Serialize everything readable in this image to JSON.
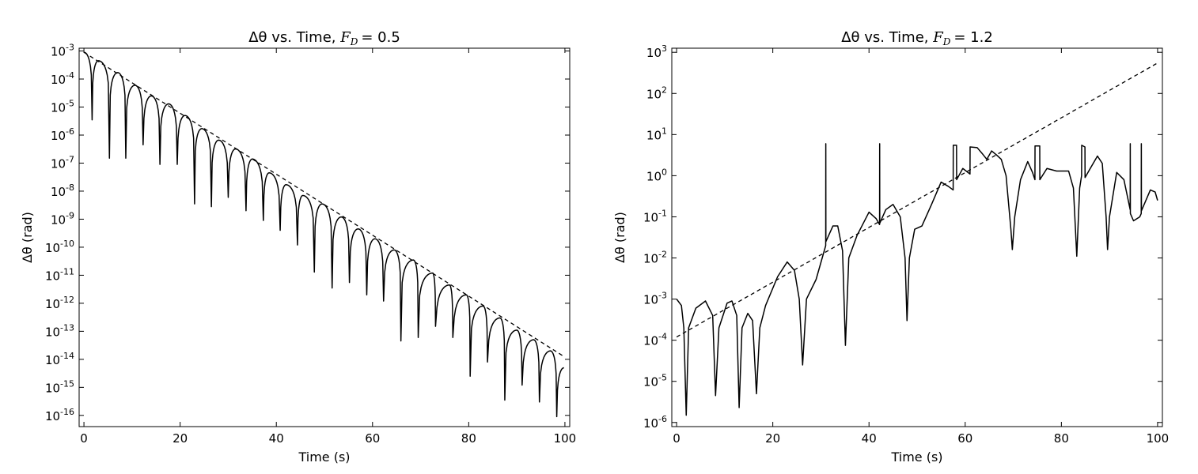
{
  "chart_data": [
    {
      "type": "line",
      "title_prefix": "Δθ vs. Time,",
      "title_math": "F",
      "title_sub": "D",
      "title_value": "= 0.5",
      "xlabel": "Time (s)",
      "ylabel": "Δθ (rad)",
      "yscale": "log",
      "xlim": [
        -1,
        101
      ],
      "ylim": [
        1e-16,
        0.001
      ],
      "ylim_log10": [
        -16.4,
        -2.9
      ],
      "x_ticks": [
        0,
        20,
        40,
        60,
        80,
        100
      ],
      "x_tick_labels": [
        "0",
        "20",
        "40",
        "60",
        "80",
        "100"
      ],
      "y_ticks_exp": [
        -3,
        -4,
        -5,
        -6,
        -7,
        -8,
        -9,
        -10,
        -11,
        -12,
        -13,
        -14,
        -15,
        -16
      ],
      "y_tick_base": "10",
      "y_tick_exp_labels": [
        "-3",
        "-4",
        "-5",
        "-6",
        "-7",
        "-8",
        "-9",
        "-10",
        "-11",
        "-12",
        "-13",
        "-14",
        "-15",
        "-16"
      ],
      "series": [
        {
          "style": "solid",
          "peaks": [
            [
              0,
              0.0009
            ],
            [
              3,
              0.00045
            ],
            [
              7,
              0.00017
            ],
            [
              10.6,
              6e-05
            ],
            [
              14,
              2.5e-05
            ],
            [
              17.6,
              1.3e-05
            ],
            [
              21,
              5e-06
            ],
            [
              24.5,
              1.7e-06
            ],
            [
              28,
              6.6e-07
            ],
            [
              31.5,
              3.2e-07
            ],
            [
              35,
              1.4e-07
            ],
            [
              38.5,
              4.5e-08
            ],
            [
              42,
              1.7e-08
            ],
            [
              45.5,
              7e-09
            ],
            [
              49.5,
              3.5e-09
            ],
            [
              53.5,
              1.2e-09
            ],
            [
              57,
              4.5e-10
            ],
            [
              60.5,
              2e-10
            ],
            [
              64.5,
              8e-11
            ],
            [
              68.5,
              3.5e-11
            ],
            [
              72.5,
              1.2e-11
            ],
            [
              76,
              4.5e-12
            ],
            [
              79.5,
              2e-12
            ],
            [
              83,
              8e-13
            ],
            [
              86.5,
              3e-13
            ],
            [
              90,
              1.1e-13
            ],
            [
              93.5,
              5e-14
            ],
            [
              97,
              2e-14
            ],
            [
              99.8,
              5e-15
            ]
          ],
          "dips": [
            [
              1.7,
              3.5e-06
            ],
            [
              5.3,
              1.5e-07
            ],
            [
              8.7,
              1.5e-07
            ],
            [
              12.3,
              4.5e-07
            ],
            [
              15.8,
              9e-08
            ],
            [
              19.4,
              9e-08
            ],
            [
              23,
              3.5e-09
            ],
            [
              26.5,
              2.8e-09
            ],
            [
              30,
              6e-09
            ],
            [
              33.7,
              2e-09
            ],
            [
              37.3,
              9e-10
            ],
            [
              40.8,
              4e-10
            ],
            [
              44.4,
              1.2e-10
            ],
            [
              47.9,
              1.3e-11
            ],
            [
              51.6,
              3.5e-12
            ],
            [
              55.2,
              5.5e-12
            ],
            [
              58.8,
              2e-12
            ],
            [
              62.3,
              1.2e-12
            ],
            [
              65.9,
              4.5e-14
            ],
            [
              69.5,
              6e-14
            ],
            [
              73.1,
              1.5e-13
            ],
            [
              76.7,
              6e-14
            ],
            [
              80.3,
              2.5e-15
            ],
            [
              83.9,
              8e-15
            ],
            [
              87.5,
              3.5e-16
            ],
            [
              91.1,
              1.2e-15
            ],
            [
              94.7,
              3e-16
            ],
            [
              98.3,
              9e-17
            ]
          ]
        },
        {
          "style": "dashed",
          "x": [
            0,
            100
          ],
          "y": [
            0.0009,
            1.2e-14
          ]
        }
      ]
    },
    {
      "type": "line",
      "title_prefix": "Δθ vs. Time,",
      "title_math": "F",
      "title_sub": "D",
      "title_value": "= 1.2",
      "xlabel": "Time (s)",
      "ylabel": "Δθ (rad)",
      "yscale": "log",
      "xlim": [
        -1,
        101
      ],
      "ylim": [
        1e-06,
        1000.0
      ],
      "ylim_log10": [
        -6.1,
        3.1
      ],
      "x_ticks": [
        0,
        20,
        40,
        60,
        80,
        100
      ],
      "x_tick_labels": [
        "0",
        "20",
        "40",
        "60",
        "80",
        "100"
      ],
      "y_ticks_exp": [
        3,
        2,
        1,
        0,
        -1,
        -2,
        -3,
        -4,
        -5,
        -6
      ],
      "y_tick_base": "10",
      "y_tick_exp_labels": [
        "3",
        "2",
        "1",
        "0",
        "-1",
        "-2",
        "-3",
        "-4",
        "-5",
        "-6"
      ],
      "series": [
        {
          "style": "solid",
          "points": [
            [
              0,
              0.001
            ],
            [
              1,
              0.0007
            ],
            [
              1.5,
              0.0002
            ],
            [
              2,
              1.5e-06
            ],
            [
              2.5,
              0.0002
            ],
            [
              4,
              0.0006
            ],
            [
              6,
              0.0009
            ],
            [
              7.5,
              0.0004
            ],
            [
              8.1,
              4.5e-06
            ],
            [
              8.8,
              0.0002
            ],
            [
              10.5,
              0.0008
            ],
            [
              11.5,
              0.0009
            ],
            [
              12.5,
              0.0004
            ],
            [
              13,
              2.3e-06
            ],
            [
              13.6,
              0.0002
            ],
            [
              14.8,
              0.00045
            ],
            [
              15.8,
              0.0003
            ],
            [
              16.6,
              5e-06
            ],
            [
              17.3,
              0.0002
            ],
            [
              18.5,
              0.0007
            ],
            [
              21,
              0.0035
            ],
            [
              23,
              0.008
            ],
            [
              24.5,
              0.005
            ],
            [
              25.5,
              0.001
            ],
            [
              26.2,
              2.5e-05
            ],
            [
              27,
              0.001
            ],
            [
              29,
              0.003
            ],
            [
              31,
              0.02
            ],
            [
              31.02,
              6.0
            ],
            [
              31.04,
              0.025
            ],
            [
              32.5,
              0.06
            ],
            [
              33.5,
              0.06
            ],
            [
              34.5,
              0.015
            ],
            [
              35.1,
              7.5e-05
            ],
            [
              35.8,
              0.01
            ],
            [
              37.5,
              0.035
            ],
            [
              40,
              0.13
            ],
            [
              41.5,
              0.09
            ],
            [
              42.2,
              0.065
            ],
            [
              42.22,
              6.0
            ],
            [
              42.24,
              0.07
            ],
            [
              43.5,
              0.15
            ],
            [
              45,
              0.2
            ],
            [
              46.5,
              0.1
            ],
            [
              47.5,
              0.01
            ],
            [
              47.9,
              0.0003
            ],
            [
              48.4,
              0.01
            ],
            [
              49.5,
              0.05
            ],
            [
              51,
              0.06
            ],
            [
              53,
              0.2
            ],
            [
              55,
              0.7
            ],
            [
              56.5,
              0.55
            ],
            [
              57.5,
              0.45
            ],
            [
              57.52,
              5.5
            ],
            [
              58.2,
              5.5
            ],
            [
              58.22,
              0.8
            ],
            [
              59.5,
              1.5
            ],
            [
              61,
              1.1
            ],
            [
              61.02,
              5.0
            ],
            [
              62.5,
              4.8
            ],
            [
              63.5,
              3.5
            ],
            [
              64.5,
              2.5
            ],
            [
              65.5,
              4.0
            ],
            [
              66.5,
              3.2
            ],
            [
              67.5,
              2.5
            ],
            [
              68.5,
              1.0
            ],
            [
              69.5,
              0.05
            ],
            [
              69.8,
              0.016
            ],
            [
              70.3,
              0.1
            ],
            [
              71.5,
              0.8
            ],
            [
              73,
              2.2
            ],
            [
              74,
              1.2
            ],
            [
              74.5,
              0.8
            ],
            [
              74.52,
              5.3
            ],
            [
              75.5,
              5.3
            ],
            [
              75.52,
              0.8
            ],
            [
              77,
              1.5
            ],
            [
              79,
              1.3
            ],
            [
              81.5,
              1.3
            ],
            [
              82.5,
              0.5
            ],
            [
              83.2,
              0.011
            ],
            [
              83.8,
              0.5
            ],
            [
              84.2,
              1.0
            ],
            [
              84.22,
              5.5
            ],
            [
              84.9,
              5.0
            ],
            [
              84.92,
              0.9
            ],
            [
              86,
              1.5
            ],
            [
              87.5,
              3.0
            ],
            [
              88.5,
              2.0
            ],
            [
              89.3,
              0.1
            ],
            [
              89.6,
              0.016
            ],
            [
              90,
              0.1
            ],
            [
              91.5,
              1.2
            ],
            [
              93,
              0.8
            ],
            [
              94.3,
              0.15
            ],
            [
              94.32,
              6.0
            ],
            [
              94.34,
              0.12
            ],
            [
              95,
              0.08
            ],
            [
              96.3,
              0.1
            ],
            [
              96.6,
              0.12
            ],
            [
              96.62,
              6.0
            ],
            [
              96.64,
              0.14
            ],
            [
              98.5,
              0.45
            ],
            [
              99.5,
              0.4
            ],
            [
              100,
              0.25
            ]
          ]
        },
        {
          "style": "dashed",
          "x": [
            0,
            100
          ],
          "y": [
            0.00012,
            550
          ]
        }
      ]
    }
  ]
}
